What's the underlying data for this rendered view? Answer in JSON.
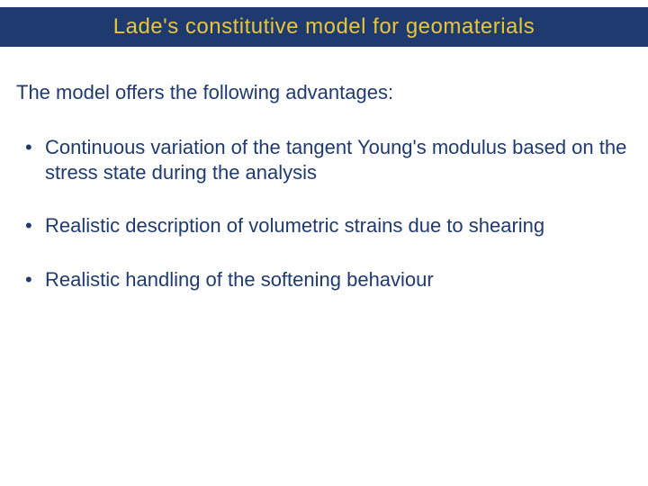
{
  "slide": {
    "title": "Lade's constitutive model for geomaterials",
    "intro": "The model offers the following advantages:",
    "bullets": [
      "Continuous variation of the tangent Young's modulus based on the stress state during the analysis",
      "Realistic description of volumetric strains due to shearing",
      "Realistic handling of the softening behaviour"
    ]
  },
  "style": {
    "title_bar_bg": "#1f3a6e",
    "title_text_color": "#e8c63c",
    "body_text_color": "#1f3a6e",
    "bullet_color": "#1f3a6e",
    "background_color": "#ffffff",
    "title_fontsize": 24,
    "body_fontsize": 22,
    "font_family": "Comic Sans MS"
  }
}
